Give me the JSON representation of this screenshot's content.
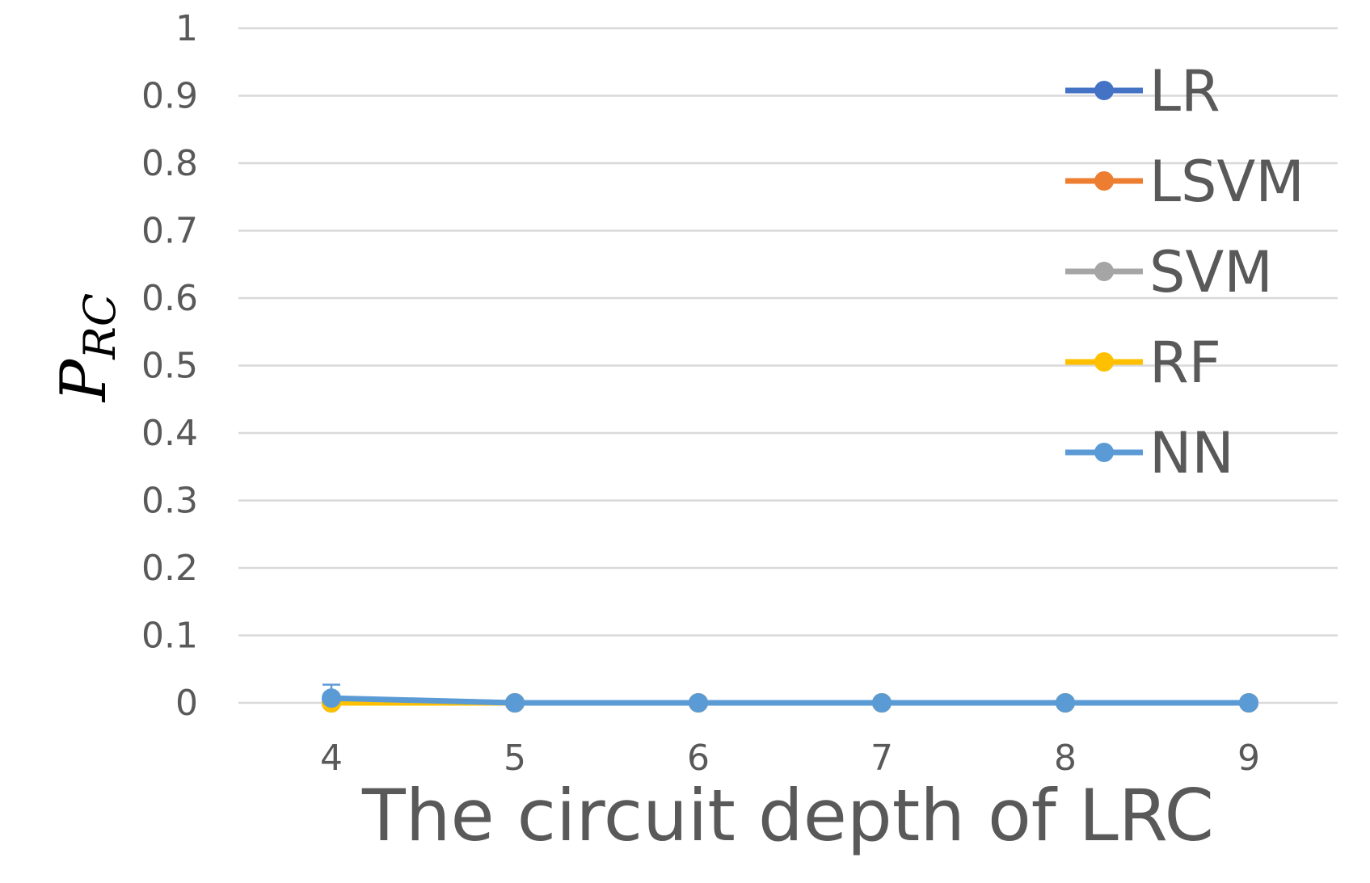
{
  "chart_data": {
    "type": "line",
    "title": "",
    "xlabel": "The circuit depth of LRC",
    "ylabel_main": "P",
    "ylabel_sub": "RC",
    "x": [
      4,
      5,
      6,
      7,
      8,
      9
    ],
    "ylim": [
      0,
      1
    ],
    "yticks": [
      "0",
      "0.1",
      "0.2",
      "0.3",
      "0.4",
      "0.5",
      "0.6",
      "0.7",
      "0.8",
      "0.9",
      "1"
    ],
    "grid": true,
    "legend_position": "top-right",
    "series": [
      {
        "name": "LR",
        "color": "#4472C4",
        "values": [
          0,
          0,
          0,
          0,
          0,
          0
        ]
      },
      {
        "name": "LSVM",
        "color": "#ED7D31",
        "values": [
          0,
          0,
          0,
          0,
          0,
          0
        ]
      },
      {
        "name": "SVM",
        "color": "#A5A5A5",
        "values": [
          0,
          0,
          0,
          0,
          0,
          0
        ]
      },
      {
        "name": "RF",
        "color": "#FFC000",
        "values": [
          0,
          0,
          0,
          0,
          0,
          0
        ]
      },
      {
        "name": "NN",
        "color": "#5B9BD5",
        "values": [
          0.007,
          0,
          0,
          0,
          0,
          0
        ],
        "error_upper": [
          0.02,
          0,
          0,
          0,
          0,
          0
        ]
      }
    ]
  }
}
